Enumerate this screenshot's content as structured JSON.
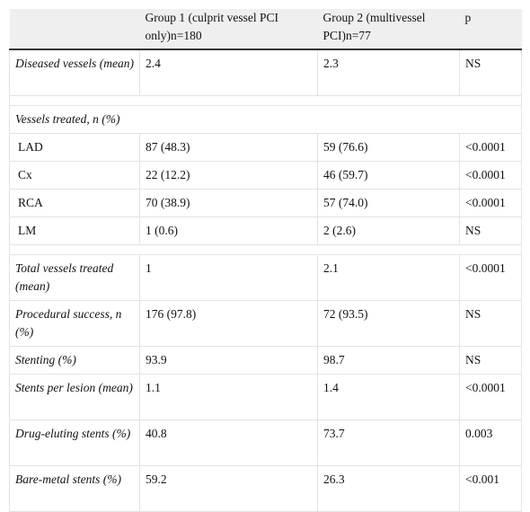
{
  "table": {
    "header": [
      "Group 1 (culprit vessel PCI only)n=180",
      "Group 2 (multivessel PCI)n=77",
      "p"
    ],
    "rows": [
      [
        "Diseased vessels (mean)",
        "2.4",
        "2.3",
        "NS"
      ],
      [
        "LAD",
        "87 (48.3)",
        "59 (76.6)",
        "<0.0001"
      ],
      [
        "Cx",
        "22 (12.2)",
        "46 (59.7)",
        "<0.0001"
      ],
      [
        "RCA",
        "70 (38.9)",
        "57 (74.0)",
        "<0.0001"
      ],
      [
        "LM",
        "1 (0.6)",
        "2 (2.6)",
        "NS"
      ],
      [
        "Total vessels treated (mean)",
        "1",
        "2.1",
        "<0.0001"
      ],
      [
        "Procedural success, n (%)",
        "176 (97.8)",
        "72 (93.5)",
        "NS"
      ],
      [
        "Stenting (%)",
        "93.9",
        "98.7",
        "NS"
      ],
      [
        "Stents per lesion (mean)",
        "1.1",
        "1.4",
        "<0.0001"
      ],
      [
        "Drug-eluting stents (%)",
        "40.8",
        "73.7",
        "0.003"
      ],
      [
        "Bare-metal stents (%)",
        "59.2",
        "26.3",
        "<0.001"
      ]
    ],
    "section": "Vessels treated, n (%)"
  }
}
